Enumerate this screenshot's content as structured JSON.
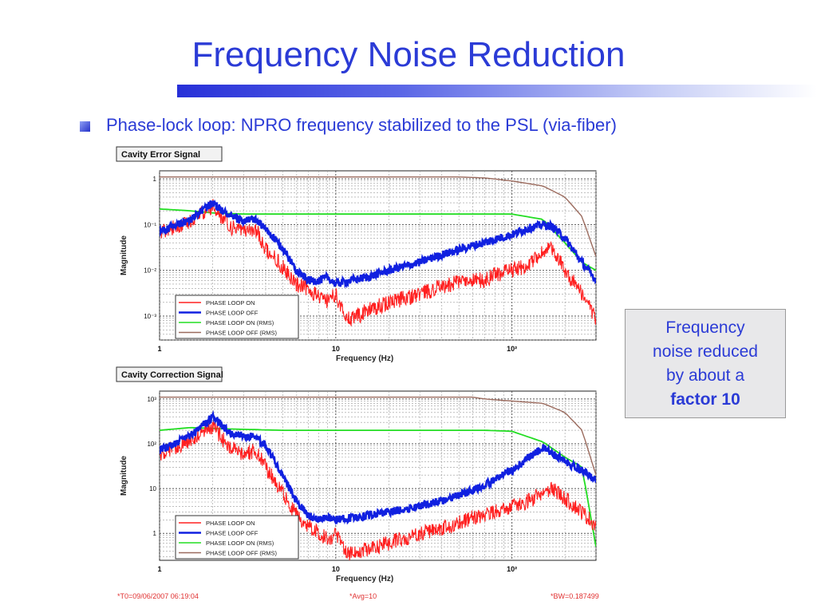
{
  "slide": {
    "title": "Frequency Noise Reduction",
    "bullet": "Phase-lock loop: NPRO frequency stabilized to the PSL (via-fiber)",
    "callout": {
      "line1": "Frequency",
      "line2": "noise reduced",
      "line3": "by about a",
      "bold": "factor 10"
    },
    "footer": {
      "left": "*T0=09/06/2007 06:19:04",
      "center": "*Avg=10",
      "right": "*BW=0.187499"
    },
    "colors": {
      "title": "#2b3bd6",
      "phase_on": "#ff2020",
      "phase_off": "#1020e0",
      "on_rms": "#22dd22",
      "off_rms": "#9b6b5e"
    }
  },
  "chart_data": [
    {
      "type": "line",
      "title": "Cavity Error Signal",
      "xlabel": "Frequency (Hz)",
      "ylabel": "Magnitude",
      "xscale": "log",
      "yscale": "log",
      "xlim": [
        1,
        300
      ],
      "ylim": [
        0.0003,
        1.5
      ],
      "xticks": [
        {
          "v": 1,
          "label": "1"
        },
        {
          "v": 10,
          "label": "10"
        },
        {
          "v": 100,
          "label": "10²"
        }
      ],
      "yticks": [
        {
          "v": 1,
          "label": "1"
        },
        {
          "v": 0.1,
          "label": "10⁻¹"
        },
        {
          "v": 0.01,
          "label": "10⁻²"
        },
        {
          "v": 0.001,
          "label": "10⁻³"
        }
      ],
      "grid": true,
      "legend_position": "bottom-left",
      "series": [
        {
          "name": "PHASE LOOP ON",
          "color": "#ff2020",
          "x": [
            1,
            1.5,
            2,
            2.5,
            3,
            3.5,
            4,
            5,
            6,
            7,
            8,
            9,
            10,
            11,
            12,
            15,
            20,
            30,
            40,
            50,
            60,
            70,
            80,
            100,
            120,
            150,
            170,
            200,
            250,
            300
          ],
          "y": [
            0.07,
            0.12,
            0.25,
            0.09,
            0.07,
            0.08,
            0.03,
            0.012,
            0.005,
            0.004,
            0.0025,
            0.0022,
            0.003,
            0.0012,
            0.0008,
            0.0013,
            0.002,
            0.003,
            0.0045,
            0.0055,
            0.006,
            0.006,
            0.008,
            0.01,
            0.012,
            0.025,
            0.03,
            0.01,
            0.003,
            0.0009
          ]
        },
        {
          "name": "PHASE LOOP OFF",
          "color": "#1020e0",
          "x": [
            1,
            1.5,
            2,
            2.5,
            3,
            3.5,
            4,
            5,
            6,
            7,
            8,
            9,
            10,
            12,
            15,
            20,
            30,
            40,
            50,
            60,
            70,
            80,
            100,
            120,
            150,
            170,
            200,
            250,
            300
          ],
          "y": [
            0.07,
            0.13,
            0.3,
            0.15,
            0.12,
            0.13,
            0.08,
            0.03,
            0.01,
            0.006,
            0.006,
            0.007,
            0.005,
            0.006,
            0.007,
            0.01,
            0.015,
            0.022,
            0.028,
            0.035,
            0.04,
            0.048,
            0.06,
            0.08,
            0.1,
            0.09,
            0.05,
            0.015,
            0.006
          ]
        },
        {
          "name": "PHASE LOOP ON (RMS)",
          "color": "#22dd22",
          "x": [
            1,
            1.5,
            2,
            3,
            5,
            10,
            30,
            100,
            150,
            200,
            250,
            300
          ],
          "y": [
            0.22,
            0.2,
            0.18,
            0.17,
            0.17,
            0.17,
            0.17,
            0.17,
            0.13,
            0.04,
            0.015,
            0.01
          ]
        },
        {
          "name": "PHASE LOOP OFF (RMS)",
          "color": "#9b6b5e",
          "x": [
            1,
            10,
            50,
            70,
            100,
            150,
            200,
            250,
            300
          ],
          "y": [
            1.1,
            1.1,
            1.1,
            1.05,
            0.9,
            0.7,
            0.4,
            0.15,
            0.02
          ]
        }
      ]
    },
    {
      "type": "line",
      "title": "Cavity Correction Signal",
      "xlabel": "Frequency (Hz)",
      "ylabel": "Magnitude",
      "xscale": "log",
      "yscale": "log",
      "xlim": [
        1,
        300
      ],
      "ylim": [
        0.25,
        1500
      ],
      "xticks": [
        {
          "v": 1,
          "label": "1"
        },
        {
          "v": 10,
          "label": "10"
        },
        {
          "v": 100,
          "label": "10²"
        }
      ],
      "yticks": [
        {
          "v": 1000,
          "label": "10³"
        },
        {
          "v": 100,
          "label": "10²"
        },
        {
          "v": 10,
          "label": "10"
        },
        {
          "v": 1,
          "label": "1"
        }
      ],
      "grid": true,
      "legend_position": "bottom-left",
      "series": [
        {
          "name": "PHASE LOOP ON",
          "color": "#ff2020",
          "x": [
            1,
            1.5,
            2,
            2.5,
            3,
            3.5,
            4,
            5,
            6,
            7,
            8,
            9,
            10,
            11,
            12,
            15,
            20,
            30,
            40,
            50,
            60,
            70,
            80,
            100,
            120,
            150,
            170,
            200,
            250,
            300
          ],
          "y": [
            60,
            120,
            250,
            80,
            60,
            70,
            30,
            8,
            2.5,
            1.5,
            1,
            0.8,
            0.9,
            0.5,
            0.35,
            0.45,
            0.6,
            1,
            1.3,
            1.8,
            2.2,
            2.5,
            3,
            4,
            5,
            8,
            10,
            6,
            3,
            1.5
          ]
        },
        {
          "name": "PHASE LOOP OFF",
          "color": "#1020e0",
          "x": [
            1,
            1.5,
            2,
            2.5,
            3,
            3.5,
            4,
            5,
            6,
            7,
            8,
            9,
            10,
            12,
            15,
            20,
            30,
            40,
            50,
            60,
            70,
            80,
            100,
            120,
            150,
            170,
            200,
            250,
            300
          ],
          "y": [
            70,
            150,
            400,
            180,
            150,
            140,
            90,
            20,
            5,
            2.5,
            2,
            2.2,
            2,
            2.2,
            2.5,
            3,
            4,
            5.5,
            7,
            9,
            12,
            16,
            25,
            45,
            80,
            60,
            40,
            25,
            15
          ]
        },
        {
          "name": "PHASE LOOP ON (RMS)",
          "color": "#22dd22",
          "x": [
            1,
            1.5,
            2,
            3,
            5,
            10,
            30,
            70,
            100,
            150,
            200,
            250,
            300
          ],
          "y": [
            200,
            230,
            220,
            210,
            200,
            200,
            200,
            200,
            190,
            110,
            50,
            30,
            0.5
          ]
        },
        {
          "name": "PHASE LOOP OFF (RMS)",
          "color": "#9b6b5e",
          "x": [
            1,
            30,
            60,
            70,
            100,
            150,
            200,
            250,
            300
          ],
          "y": [
            1100,
            1100,
            1100,
            1000,
            900,
            800,
            500,
            200,
            20
          ]
        }
      ]
    }
  ]
}
